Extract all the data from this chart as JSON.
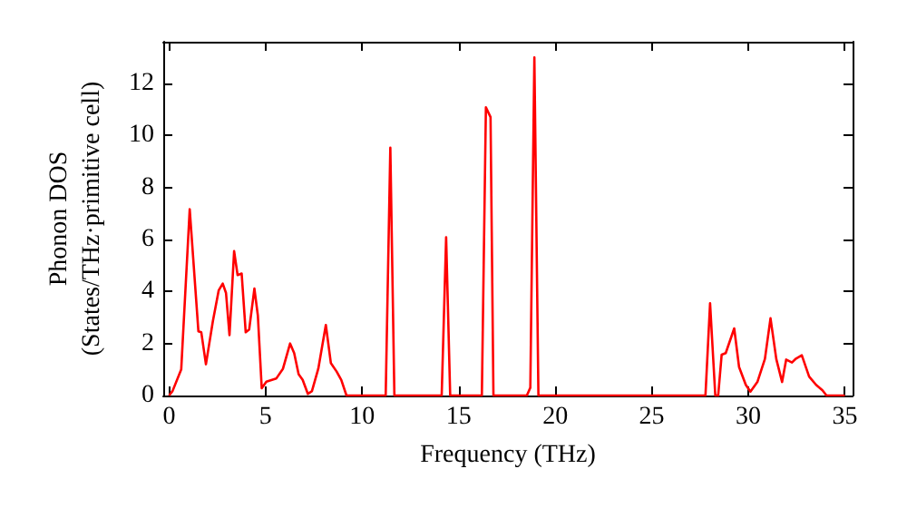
{
  "chart_data": {
    "type": "line",
    "xlabel": "Frequency (THz)",
    "ylabel": "Phonon DOS\n(States/THz·primitive cell)",
    "series": [
      {
        "color": "#ff0000",
        "x": [
          0,
          0.18,
          0.63,
          1.07,
          1.52,
          1.67,
          1.91,
          2.27,
          2.57,
          2.78,
          2.95,
          3.13,
          3.37,
          3.55,
          3.76,
          3.97,
          4.15,
          4.42,
          4.6,
          4.8,
          5.04,
          5.55,
          5.9,
          6.27,
          6.48,
          6.71,
          6.92,
          7.19,
          7.4,
          7.73,
          8.12,
          8.38,
          8.68,
          8.92,
          9.19,
          11.22,
          11.46,
          11.67,
          14.12,
          14.35,
          14.56,
          16.2,
          16.41,
          16.65,
          16.8,
          18.53,
          18.71,
          18.92,
          19.13,
          27.78,
          28.02,
          28.29,
          28.44,
          28.62,
          28.83,
          29.27,
          29.52,
          29.87,
          30.11,
          30.47,
          30.86,
          31.15,
          31.45,
          31.75,
          31.96,
          32.26,
          32.47,
          32.77,
          33.15,
          33.51,
          33.84,
          34.05,
          35
        ],
        "values": [
          0,
          0.17,
          1.0,
          7.16,
          2.47,
          2.43,
          1.2,
          2.86,
          4.04,
          4.3,
          3.94,
          2.32,
          5.55,
          4.63,
          4.69,
          2.43,
          2.54,
          4.11,
          3.07,
          0.28,
          0.53,
          0.65,
          1.03,
          2.0,
          1.63,
          0.82,
          0.6,
          0.06,
          0.17,
          1.03,
          2.71,
          1.25,
          0.92,
          0.6,
          0,
          0,
          9.53,
          0,
          0,
          6.08,
          0,
          0,
          11.08,
          10.7,
          0,
          0,
          0.3,
          13.0,
          0,
          0,
          3.55,
          0,
          0,
          1.57,
          1.63,
          2.58,
          1.1,
          0.41,
          0.15,
          0.52,
          1.41,
          2.97,
          1.4,
          0.52,
          1.38,
          1.27,
          1.42,
          1.55,
          0.73,
          0.41,
          0.2,
          0,
          0
        ]
      }
    ],
    "xlim": [
      -0.3,
      35.4
    ],
    "ylim": [
      0,
      13.6
    ],
    "xticks": [
      0,
      5,
      10,
      15,
      20,
      25,
      30,
      35
    ],
    "yticks": [
      0,
      2,
      4,
      6,
      8,
      10,
      12
    ],
    "grid": false,
    "marker": "none",
    "line_style": "solid"
  }
}
